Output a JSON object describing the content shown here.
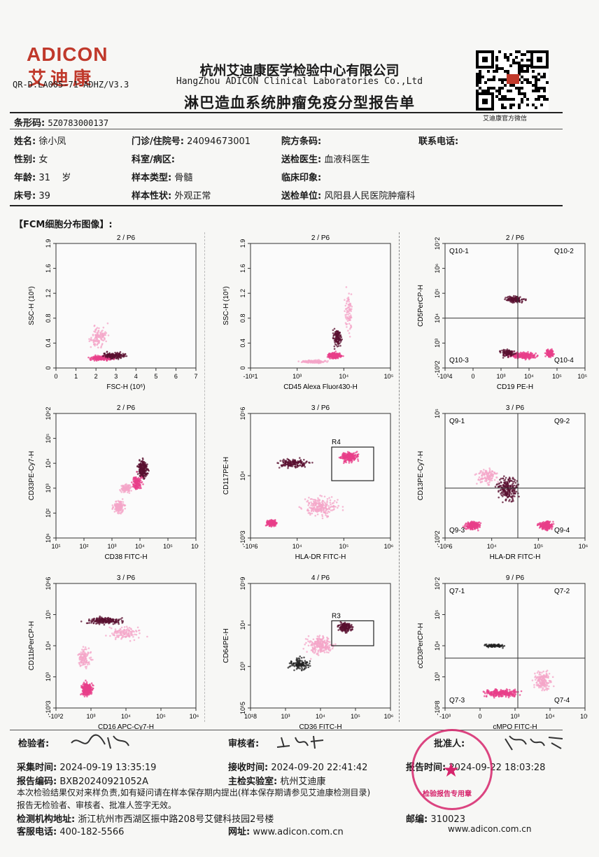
{
  "header": {
    "logo_en": "ADICON",
    "logo_cn": "艾迪康",
    "doc_code": "QR-D.LA005-71-ADHZ/V3.3",
    "company_cn": "杭州艾迪康医学检验中心有限公司",
    "company_en": "HangZhou ADICON Clinical Laboratories Co.,Ltd",
    "title": "淋巴造血系统肿瘤免疫分型报告单",
    "qr_caption": "艾迪康官方微信"
  },
  "barcode": {
    "label": "条形码:",
    "value": "5Z0783000137"
  },
  "patient": {
    "name_label": "姓名:",
    "name": "徐小凤",
    "id_label": "门诊/住院号:",
    "id": "24094673001",
    "hosp_code_label": "院方条码:",
    "hosp_code": "",
    "phone_label": "联系电话:",
    "phone": "",
    "sex_label": "性别:",
    "sex": "女",
    "dept_label": "科室/病区:",
    "dept": "",
    "doctor_label": "送检医生:",
    "doctor": "血液科医生",
    "age_label": "年龄:",
    "age": "31",
    "age_unit": "岁",
    "sample_type_label": "样本类型:",
    "sample_type": "骨髓",
    "clinical_label": "临床印象:",
    "clinical": "",
    "bed_label": "床号:",
    "bed": "39",
    "sample_state_label": "样本性状:",
    "sample_state": "外观正常",
    "unit_label": "送检单位:",
    "unit": "风阳县人民医院肿瘤科"
  },
  "section_title": "【FCM细胞分布图像】:",
  "plots": [
    {
      "title": "2 / P6",
      "xlabel": "FSC-H (10⁶)",
      "ylabel": "SSC-H (10⁶)",
      "xticks": [
        "0",
        "1",
        "2",
        "3",
        "4",
        "5",
        "6",
        "7"
      ],
      "yticks": [
        "0",
        "0.4",
        "0.8",
        "1.2",
        "1.6",
        "1.9"
      ]
    },
    {
      "title": "2 / P6",
      "xlabel": "CD45 Alexa Fluor430-H",
      "ylabel": "SSC-H (10⁶)",
      "xticks": [
        "-10²1",
        "10³",
        "10⁴",
        "10⁵6"
      ],
      "yticks": [
        "0",
        "0.4",
        "0.8",
        "1.2",
        "1.6",
        "1.9"
      ]
    },
    {
      "title": "2 / P6",
      "xlabel": "CD19 PE-H",
      "ylabel": "CD5PerCP-H",
      "xticks": [
        "-10³4",
        "0",
        "10³",
        "10⁴",
        "10⁵",
        "10⁵.4"
      ],
      "yticks": [
        "-10³2",
        "10³",
        "10⁴",
        "10⁵",
        "10⁶",
        "10⁷2"
      ],
      "quads": [
        "Q10-1",
        "Q10-2",
        "Q10-3",
        "Q10-4"
      ]
    },
    {
      "title": "2 / P6",
      "xlabel": "CD38 FITC-H",
      "ylabel": "CD33PE-Cy7-H",
      "xticks": [
        "10¹",
        "10²",
        "10³",
        "10⁴",
        "10⁵",
        "10⁶"
      ],
      "yticks": [
        "10⁶",
        "10²",
        "10³",
        "10⁴",
        "10⁵",
        "10⁶2"
      ]
    },
    {
      "title": "3 / P6",
      "xlabel": "HLA-DR FITC-H",
      "ylabel": "CD117PE-H",
      "xticks": [
        "-10²6",
        "10⁴",
        "10⁵",
        "10⁶5"
      ],
      "yticks": [
        "-10³3",
        "10⁴",
        "10⁵6"
      ],
      "gate": "R4"
    },
    {
      "title": "3 / P6",
      "xlabel": "HLA-DR FITC-H",
      "ylabel": "CD13PE-Cy7-H",
      "xticks": [
        "-10²6",
        "10⁴",
        "10⁵",
        "10⁶5"
      ],
      "yticks": [
        "-10³2",
        "10⁵"
      ],
      "quads": [
        "Q9-1",
        "Q9-2",
        "Q9-3",
        "Q9-4"
      ]
    },
    {
      "title": "3 / P6",
      "xlabel": "CD16 APC-Cy7-H",
      "ylabel": "CD11bPerCP-H",
      "xticks": [
        "-10³2",
        "10³",
        "10⁴",
        "10⁵",
        "10⁶7"
      ],
      "yticks": [
        "-10³3",
        "10³",
        "10⁴",
        "10⁵",
        "10⁶6"
      ]
    },
    {
      "title": "4 / P6",
      "xlabel": "CD36 FITC-H",
      "ylabel": "CD64PE-H",
      "xticks": [
        "10¹8",
        "10³",
        "10⁴",
        "10⁵",
        "10⁶5"
      ],
      "yticks": [
        "10¹5",
        "10³",
        "10⁴",
        "10⁵9"
      ],
      "gate": "R3"
    },
    {
      "title": "9 / P6",
      "xlabel": "cMPO FITC-H",
      "ylabel": "cCD3PerCP-H",
      "xticks": [
        "-10³",
        "0",
        "10³",
        "10⁴",
        "10⁵"
      ],
      "yticks": [
        "-10²8",
        "10³",
        "10⁴",
        "10⁵",
        "10⁷2"
      ],
      "quads": [
        "Q7-1",
        "Q7-2",
        "Q7-3",
        "Q7-4"
      ]
    }
  ],
  "footer": {
    "tester_label": "检验者:",
    "reviewer_label": "审核者:",
    "approver_label": "批准人:",
    "collect_label": "采集时间:",
    "collect_time": "2024-09-19 13:35:19",
    "receive_label": "接收时间:",
    "receive_time": "2024-09-20 22:41:42",
    "report_time_label": "报告时间:",
    "report_time": "2024-09-22 18:03:28",
    "report_no_label": "报告编码:",
    "report_no": "BXB20240921052A",
    "lab_label": "主检实验室:",
    "lab": "杭州艾迪康",
    "note1": "本次检验结果仅对来样负责,如有疑问请在样本保存期内提出(样本保存期请参见艾迪康检测目录)",
    "note2": "报告无检验者、审核者、批准人签字无效。",
    "address_label": "检测机构地址:",
    "address": "浙江杭州市西湖区振中路208号艾健科技园2号楼",
    "postcode_label": "邮编:",
    "postcode": "310023",
    "hotline_label": "客服电话:",
    "hotline": "400-182-5566",
    "website_label": "网址:",
    "website": "www.adicon.com.cn",
    "website2": "www.adicon.com.cn",
    "stamp_text": "检验报告专用章"
  },
  "colors": {
    "brand": "#c0392b",
    "dot_pink": "#e83f8a",
    "dot_dark": "#5a1030",
    "stamp": "#d6246b"
  }
}
